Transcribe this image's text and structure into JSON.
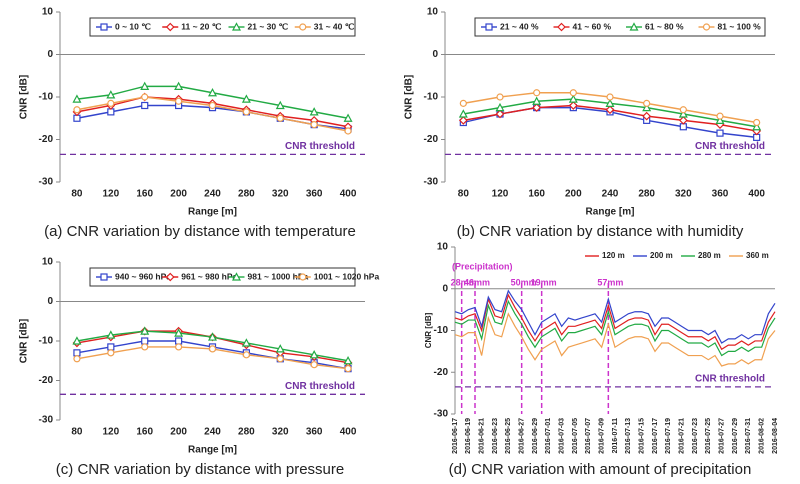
{
  "chart_data": [
    {
      "type": "line",
      "caption": "(a) CNR variation by distance with temperature",
      "xlabel": "Range [m]",
      "ylabel": "CNR [dB]",
      "categories": [
        "80",
        "120",
        "160",
        "200",
        "240",
        "280",
        "320",
        "360",
        "400"
      ],
      "ylim": [
        -30,
        10
      ],
      "yticks": [
        10,
        0,
        -10,
        -20,
        -30
      ],
      "legend_box": true,
      "threshold": {
        "value": -23.5,
        "label": "CNR threshold",
        "color": "#7030a0"
      },
      "series": [
        {
          "name": "0 ~ 10 ℃",
          "color": "#3344cc",
          "marker": "square",
          "values": [
            -15,
            -13.5,
            -12,
            -12,
            -12.5,
            -13.5,
            -15,
            -16.5,
            -17.5
          ]
        },
        {
          "name": "11 ~ 20 ℃",
          "color": "#e02020",
          "marker": "diamond",
          "values": [
            -13.5,
            -12,
            -10,
            -10.5,
            -11.5,
            -13,
            -14.5,
            -15.5,
            -17
          ]
        },
        {
          "name": "21 ~ 30 ℃",
          "color": "#22aa44",
          "marker": "triangle",
          "values": [
            -10.5,
            -9.5,
            -7.5,
            -7.5,
            -9,
            -10.5,
            -12,
            -13.5,
            -15
          ]
        },
        {
          "name": "31 ~ 40 ℃",
          "color": "#f0a050",
          "marker": "circle",
          "values": [
            -13,
            -11.5,
            -10,
            -11,
            -12,
            -13.5,
            -15,
            -16.5,
            -18
          ]
        }
      ]
    },
    {
      "type": "line",
      "caption": "(b) CNR variation by distance with humidity",
      "xlabel": "Range [m]",
      "ylabel": "CNR [dB]",
      "categories": [
        "80",
        "120",
        "160",
        "200",
        "240",
        "280",
        "320",
        "360",
        "400"
      ],
      "ylim": [
        -30,
        10
      ],
      "yticks": [
        10,
        0,
        -10,
        -20,
        -30
      ],
      "legend_box": true,
      "threshold": {
        "value": -23.5,
        "label": "CNR threshold",
        "color": "#7030a0"
      },
      "series": [
        {
          "name": "21 ~ 40 %",
          "color": "#3344cc",
          "marker": "square",
          "values": [
            -16,
            -14,
            -12.5,
            -12.5,
            -13.5,
            -15.5,
            -17,
            -18.5,
            -19.5
          ]
        },
        {
          "name": "41 ~ 60 %",
          "color": "#e02020",
          "marker": "diamond",
          "values": [
            -15.5,
            -14,
            -12.5,
            -12,
            -13,
            -14.5,
            -15.5,
            -16.5,
            -18
          ]
        },
        {
          "name": "61 ~ 80 %",
          "color": "#22aa44",
          "marker": "triangle",
          "values": [
            -14,
            -12.5,
            -11,
            -10.5,
            -11.5,
            -12.5,
            -14,
            -15.5,
            -17
          ]
        },
        {
          "name": "81 ~ 100 %",
          "color": "#f0a050",
          "marker": "circle",
          "values": [
            -11.5,
            -10,
            -9,
            -9,
            -10,
            -11.5,
            -13,
            -14.5,
            -16
          ]
        }
      ]
    },
    {
      "type": "line",
      "caption": "(c) CNR variation by distance with pressure",
      "xlabel": "Range [m]",
      "ylabel": "CNR [dB]",
      "categories": [
        "80",
        "120",
        "160",
        "200",
        "240",
        "280",
        "320",
        "360",
        "400"
      ],
      "ylim": [
        -30,
        10
      ],
      "yticks": [
        10,
        0,
        -10,
        -20,
        -30
      ],
      "legend_box": true,
      "threshold": {
        "value": -23.5,
        "label": "CNR threshold",
        "color": "#7030a0"
      },
      "series": [
        {
          "name": "940 ~ 960 hPa",
          "color": "#3344cc",
          "marker": "square",
          "values": [
            -13,
            -11.5,
            -10,
            -10,
            -11.5,
            -13,
            -14.5,
            -15.5,
            -17
          ]
        },
        {
          "name": "961 ~ 980 hPa",
          "color": "#e02020",
          "marker": "diamond",
          "values": [
            -10.5,
            -9,
            -7.5,
            -7.5,
            -9,
            -11,
            -13,
            -14,
            -15.5
          ]
        },
        {
          "name": "981 ~ 1000 hPa",
          "color": "#22aa44",
          "marker": "triangle",
          "values": [
            -10,
            -8.5,
            -7.5,
            -8,
            -9,
            -10.5,
            -12,
            -13.5,
            -15
          ]
        },
        {
          "name": "1001 ~ 1020 hPa",
          "color": "#f0a050",
          "marker": "circle",
          "values": [
            -14.5,
            -13,
            -11.5,
            -11.5,
            -12,
            -13.5,
            -14.5,
            -16,
            -17
          ]
        }
      ]
    },
    {
      "type": "line",
      "caption": "(d) CNR variation with amount of precipitation",
      "ylabel": "CNR [dB]",
      "categories": [
        "2016-06-17",
        null,
        "2016-06-19",
        null,
        "2016-06-21",
        null,
        "2016-06-23",
        null,
        "2016-06-25",
        null,
        "2016-06-27",
        null,
        "2016-06-29",
        null,
        "2016-07-01",
        null,
        "2016-07-03",
        null,
        "2016-07-05",
        null,
        "2016-07-07",
        null,
        "2016-07-09",
        null,
        "2016-07-11",
        null,
        "2016-07-13",
        null,
        "2016-07-15",
        null,
        "2016-07-17",
        null,
        "2016-07-19",
        null,
        "2016-07-21",
        null,
        "2016-07-23",
        null,
        "2016-07-25",
        null,
        "2016-07-27",
        null,
        "2016-07-29",
        null,
        "2016-07-31",
        null,
        "2016-08-02",
        null,
        "2016-08-04"
      ],
      "ylim": [
        -30,
        10
      ],
      "yticks": [
        10,
        0,
        -10,
        -20,
        -30
      ],
      "legend_box": false,
      "threshold": {
        "value": -23.5,
        "label": "CNR threshold",
        "color": "#7030a0"
      },
      "precipitation_label": "(Precipitation)",
      "precipitation": [
        {
          "label": "28mm",
          "index": 1
        },
        {
          "label": "46mm",
          "index": 3
        },
        {
          "label": "50mm",
          "index": 10
        },
        {
          "label": "19mm",
          "index": 13
        },
        {
          "label": "57mm",
          "index": 23
        }
      ],
      "precipitation_color": "#cc33cc",
      "series": [
        {
          "name": "120 m",
          "color": "#e02020",
          "values": [
            -7,
            -7.5,
            -6.5,
            -6,
            -10,
            -2.5,
            -6.5,
            -7,
            -1.5,
            -4.5,
            -7,
            -10,
            -12.5,
            -10,
            -9,
            -8,
            -11,
            -9,
            -9,
            -8.5,
            -8,
            -7.5,
            -9.5,
            -4,
            -9.5,
            -8.5,
            -7.5,
            -7,
            -7,
            -7.5,
            -11,
            -8.5,
            -8.5,
            -9.5,
            -10.5,
            -11.5,
            -11.5,
            -11.5,
            -12.5,
            -11.5,
            -14.5,
            -13.5,
            -13.5,
            -12.5,
            -13.5,
            -12.5,
            -12.5,
            -8,
            -5.5
          ]
        },
        {
          "name": "200 m",
          "color": "#3344cc",
          "values": [
            -5.5,
            -6,
            -5,
            -4.5,
            -9,
            -2,
            -5,
            -5.5,
            -0.5,
            -3,
            -5,
            -8,
            -11,
            -8,
            -7,
            -6,
            -9,
            -7,
            -7.5,
            -7,
            -6.5,
            -6,
            -8,
            -2.5,
            -8,
            -7,
            -6,
            -5.5,
            -5.5,
            -6,
            -9,
            -7,
            -7,
            -8,
            -9,
            -10,
            -10,
            -10,
            -11,
            -10,
            -13,
            -12,
            -12,
            -11,
            -12,
            -11,
            -11,
            -6,
            -3.5
          ]
        },
        {
          "name": "280 m",
          "color": "#22aa44",
          "values": [
            -8,
            -8.5,
            -7.5,
            -7.5,
            -12,
            -4,
            -8,
            -8.5,
            -3,
            -6,
            -8.5,
            -11.5,
            -14,
            -11.5,
            -10.5,
            -9.5,
            -12.5,
            -10.5,
            -10.5,
            -10,
            -9.5,
            -9,
            -11,
            -5.5,
            -11,
            -10,
            -9,
            -8.5,
            -8.5,
            -9,
            -12.5,
            -10,
            -10,
            -11,
            -12,
            -13,
            -13,
            -13,
            -14,
            -13,
            -16,
            -15,
            -15,
            -14,
            -15,
            -14,
            -14,
            -9.5,
            -7
          ]
        },
        {
          "name": "360 m",
          "color": "#f0a050",
          "values": [
            -11,
            -11.5,
            -10.5,
            -10.5,
            -16,
            -7,
            -11,
            -11.5,
            -6,
            -9,
            -11.5,
            -14.5,
            -17,
            -14.5,
            -13.5,
            -12.5,
            -16,
            -14,
            -13.5,
            -13,
            -12.5,
            -12,
            -14,
            -8.5,
            -14,
            -13,
            -12,
            -11.5,
            -11.5,
            -12,
            -15,
            -13,
            -13,
            -14,
            -15,
            -16,
            -16,
            -16,
            -17,
            -16,
            -18.5,
            -18,
            -18,
            -17,
            -18,
            -17,
            -17,
            -12,
            -10
          ]
        }
      ]
    }
  ]
}
